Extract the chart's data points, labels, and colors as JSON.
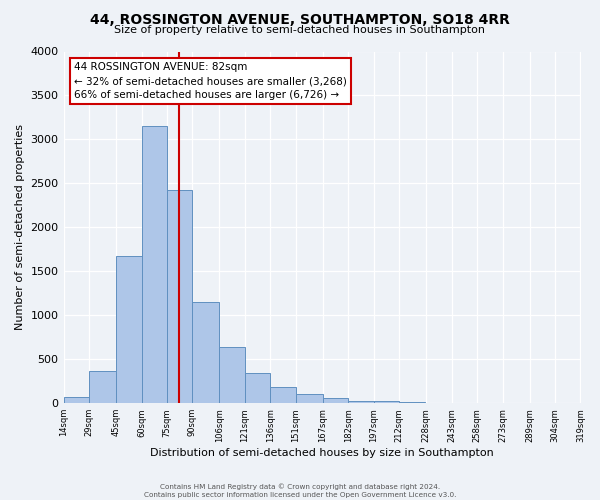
{
  "title_line1": "44, ROSSINGTON AVENUE, SOUTHAMPTON, SO18 4RR",
  "title_line2": "Size of property relative to semi-detached houses in Southampton",
  "xlabel": "Distribution of semi-detached houses by size in Southampton",
  "ylabel": "Number of semi-detached properties",
  "bar_left_edges": [
    14,
    29,
    45,
    60,
    75,
    90,
    106,
    121,
    136,
    151,
    167,
    182,
    197,
    212,
    228,
    243,
    258,
    273,
    289,
    304
  ],
  "bar_heights": [
    70,
    370,
    1670,
    3150,
    2430,
    1150,
    635,
    340,
    185,
    110,
    60,
    30,
    20,
    10,
    5,
    0,
    0,
    0,
    0,
    0
  ],
  "bar_widths": [
    15,
    16,
    15,
    15,
    15,
    16,
    15,
    15,
    15,
    16,
    15,
    15,
    15,
    15,
    15,
    15,
    15,
    15,
    15,
    15
  ],
  "bar_color": "#aec6e8",
  "bar_edge_color": "#6090c0",
  "property_line_x": 82,
  "property_line_color": "#cc0000",
  "ylim": [
    0,
    4000
  ],
  "yticks": [
    0,
    500,
    1000,
    1500,
    2000,
    2500,
    3000,
    3500,
    4000
  ],
  "xlim_left": 14,
  "xlim_right": 319,
  "xtick_labels": [
    "14sqm",
    "29sqm",
    "45sqm",
    "60sqm",
    "75sqm",
    "90sqm",
    "106sqm",
    "121sqm",
    "136sqm",
    "151sqm",
    "167sqm",
    "182sqm",
    "197sqm",
    "212sqm",
    "228sqm",
    "243sqm",
    "258sqm",
    "273sqm",
    "289sqm",
    "304sqm",
    "319sqm"
  ],
  "xtick_positions": [
    14,
    29,
    45,
    60,
    75,
    90,
    106,
    121,
    136,
    151,
    167,
    182,
    197,
    212,
    228,
    243,
    258,
    273,
    289,
    304,
    319
  ],
  "bg_color": "#eef2f7",
  "grid_color": "#ffffff",
  "annotation_text": "44 ROSSINGTON AVENUE: 82sqm\n← 32% of semi-detached houses are smaller (3,268)\n66% of semi-detached houses are larger (6,726) →",
  "annotation_box_color": "#ffffff",
  "annotation_box_edge": "#cc0000",
  "footer_line1": "Contains HM Land Registry data © Crown copyright and database right 2024.",
  "footer_line2": "Contains public sector information licensed under the Open Government Licence v3.0."
}
